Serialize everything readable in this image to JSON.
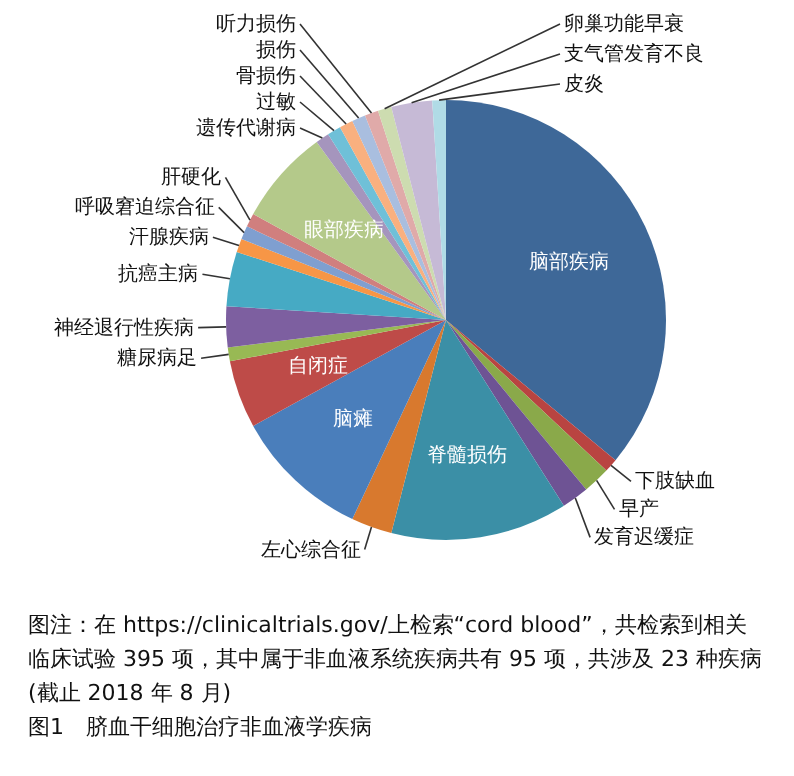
{
  "chart_data": {
    "type": "pie",
    "title": "图1　脐血干细胞治疗非血液学疾病",
    "annotations": [
      "图注：在 https://clinicaltrials.gov/上检索“cord blood”，共检索到相关临床试验 395 项，其中属于非血液系统疾病共有 95 项，共涉及 23 种疾病(截止 2018 年 8 月)"
    ],
    "categories": [
      "脑部疾病",
      "下肢缺血",
      "早产",
      "发育迟缓症",
      "脊髓损伤",
      "左心综合征",
      "脑瘫",
      "自闭症",
      "糖尿病足",
      "神经退行性疾病",
      "抗癌主病",
      "汗腺疾病",
      "呼吸窘迫综合征",
      "肝硬化",
      "眼部疾病",
      "遗传代谢病",
      "过敏",
      "骨损伤",
      "损伤",
      "听力损伤",
      "卵巢功能早衰",
      "支气管发育不良",
      "皮炎"
    ],
    "values": [
      36,
      1,
      2,
      2,
      13,
      3,
      10,
      5,
      1,
      3,
      4,
      1,
      1,
      1,
      7,
      1,
      1,
      1,
      1,
      1,
      1,
      3,
      1
    ],
    "colors": [
      "#3e6898",
      "#b94441",
      "#8aa94a",
      "#6e5394",
      "#3b8fa6",
      "#d8792e",
      "#4a7ebb",
      "#be4b48",
      "#98b954",
      "#7d5fa0",
      "#46aac4",
      "#f79646",
      "#7f9fd0",
      "#d07f7e",
      "#b4c98a",
      "#a595bd",
      "#6fc0d8",
      "#f9b07f",
      "#a9bedf",
      "#e0aaa9",
      "#cddcb0",
      "#c6bad6",
      "#b0dbe6"
    ]
  }
}
